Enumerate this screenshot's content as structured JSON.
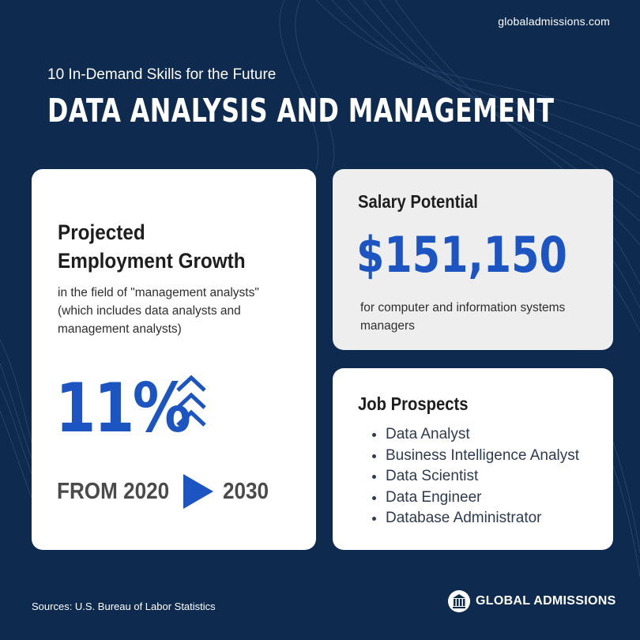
{
  "header": {
    "site_url": "globaladmissions.com",
    "subtitle": "10 In-Demand Skills for the Future",
    "title": "DATA ANALYSIS AND MANAGEMENT"
  },
  "growth_card": {
    "heading_line1": "Projected",
    "heading_line2": "Employment Growth",
    "description": "in the field of \"management analysts\" (which includes data analysts and management analysts)",
    "value": "11%",
    "icon": "triple-chevron-up-icon",
    "from_label": "FROM 2020",
    "arrow_icon": "play-arrow-icon",
    "to_label": "2030"
  },
  "salary_card": {
    "label": "Salary Potential",
    "value": "$151,150",
    "description": "for computer and information systems managers"
  },
  "jobs_card": {
    "heading": "Job Prospects",
    "items": [
      "Data Analyst",
      "Business Intelligence Analyst",
      "Data Scientist",
      "Data Engineer",
      "Database Administrator"
    ]
  },
  "footer": {
    "sources": "Sources: U.S. Bureau of Labor Statistics",
    "logo_text": "GLOBAL ADMISSIONS",
    "logo_icon": "columns-building-icon"
  },
  "colors": {
    "background": "#0e2a4f",
    "accent_blue": "#1c55c2",
    "card_white": "#ffffff",
    "card_gray": "#eeeeef"
  }
}
